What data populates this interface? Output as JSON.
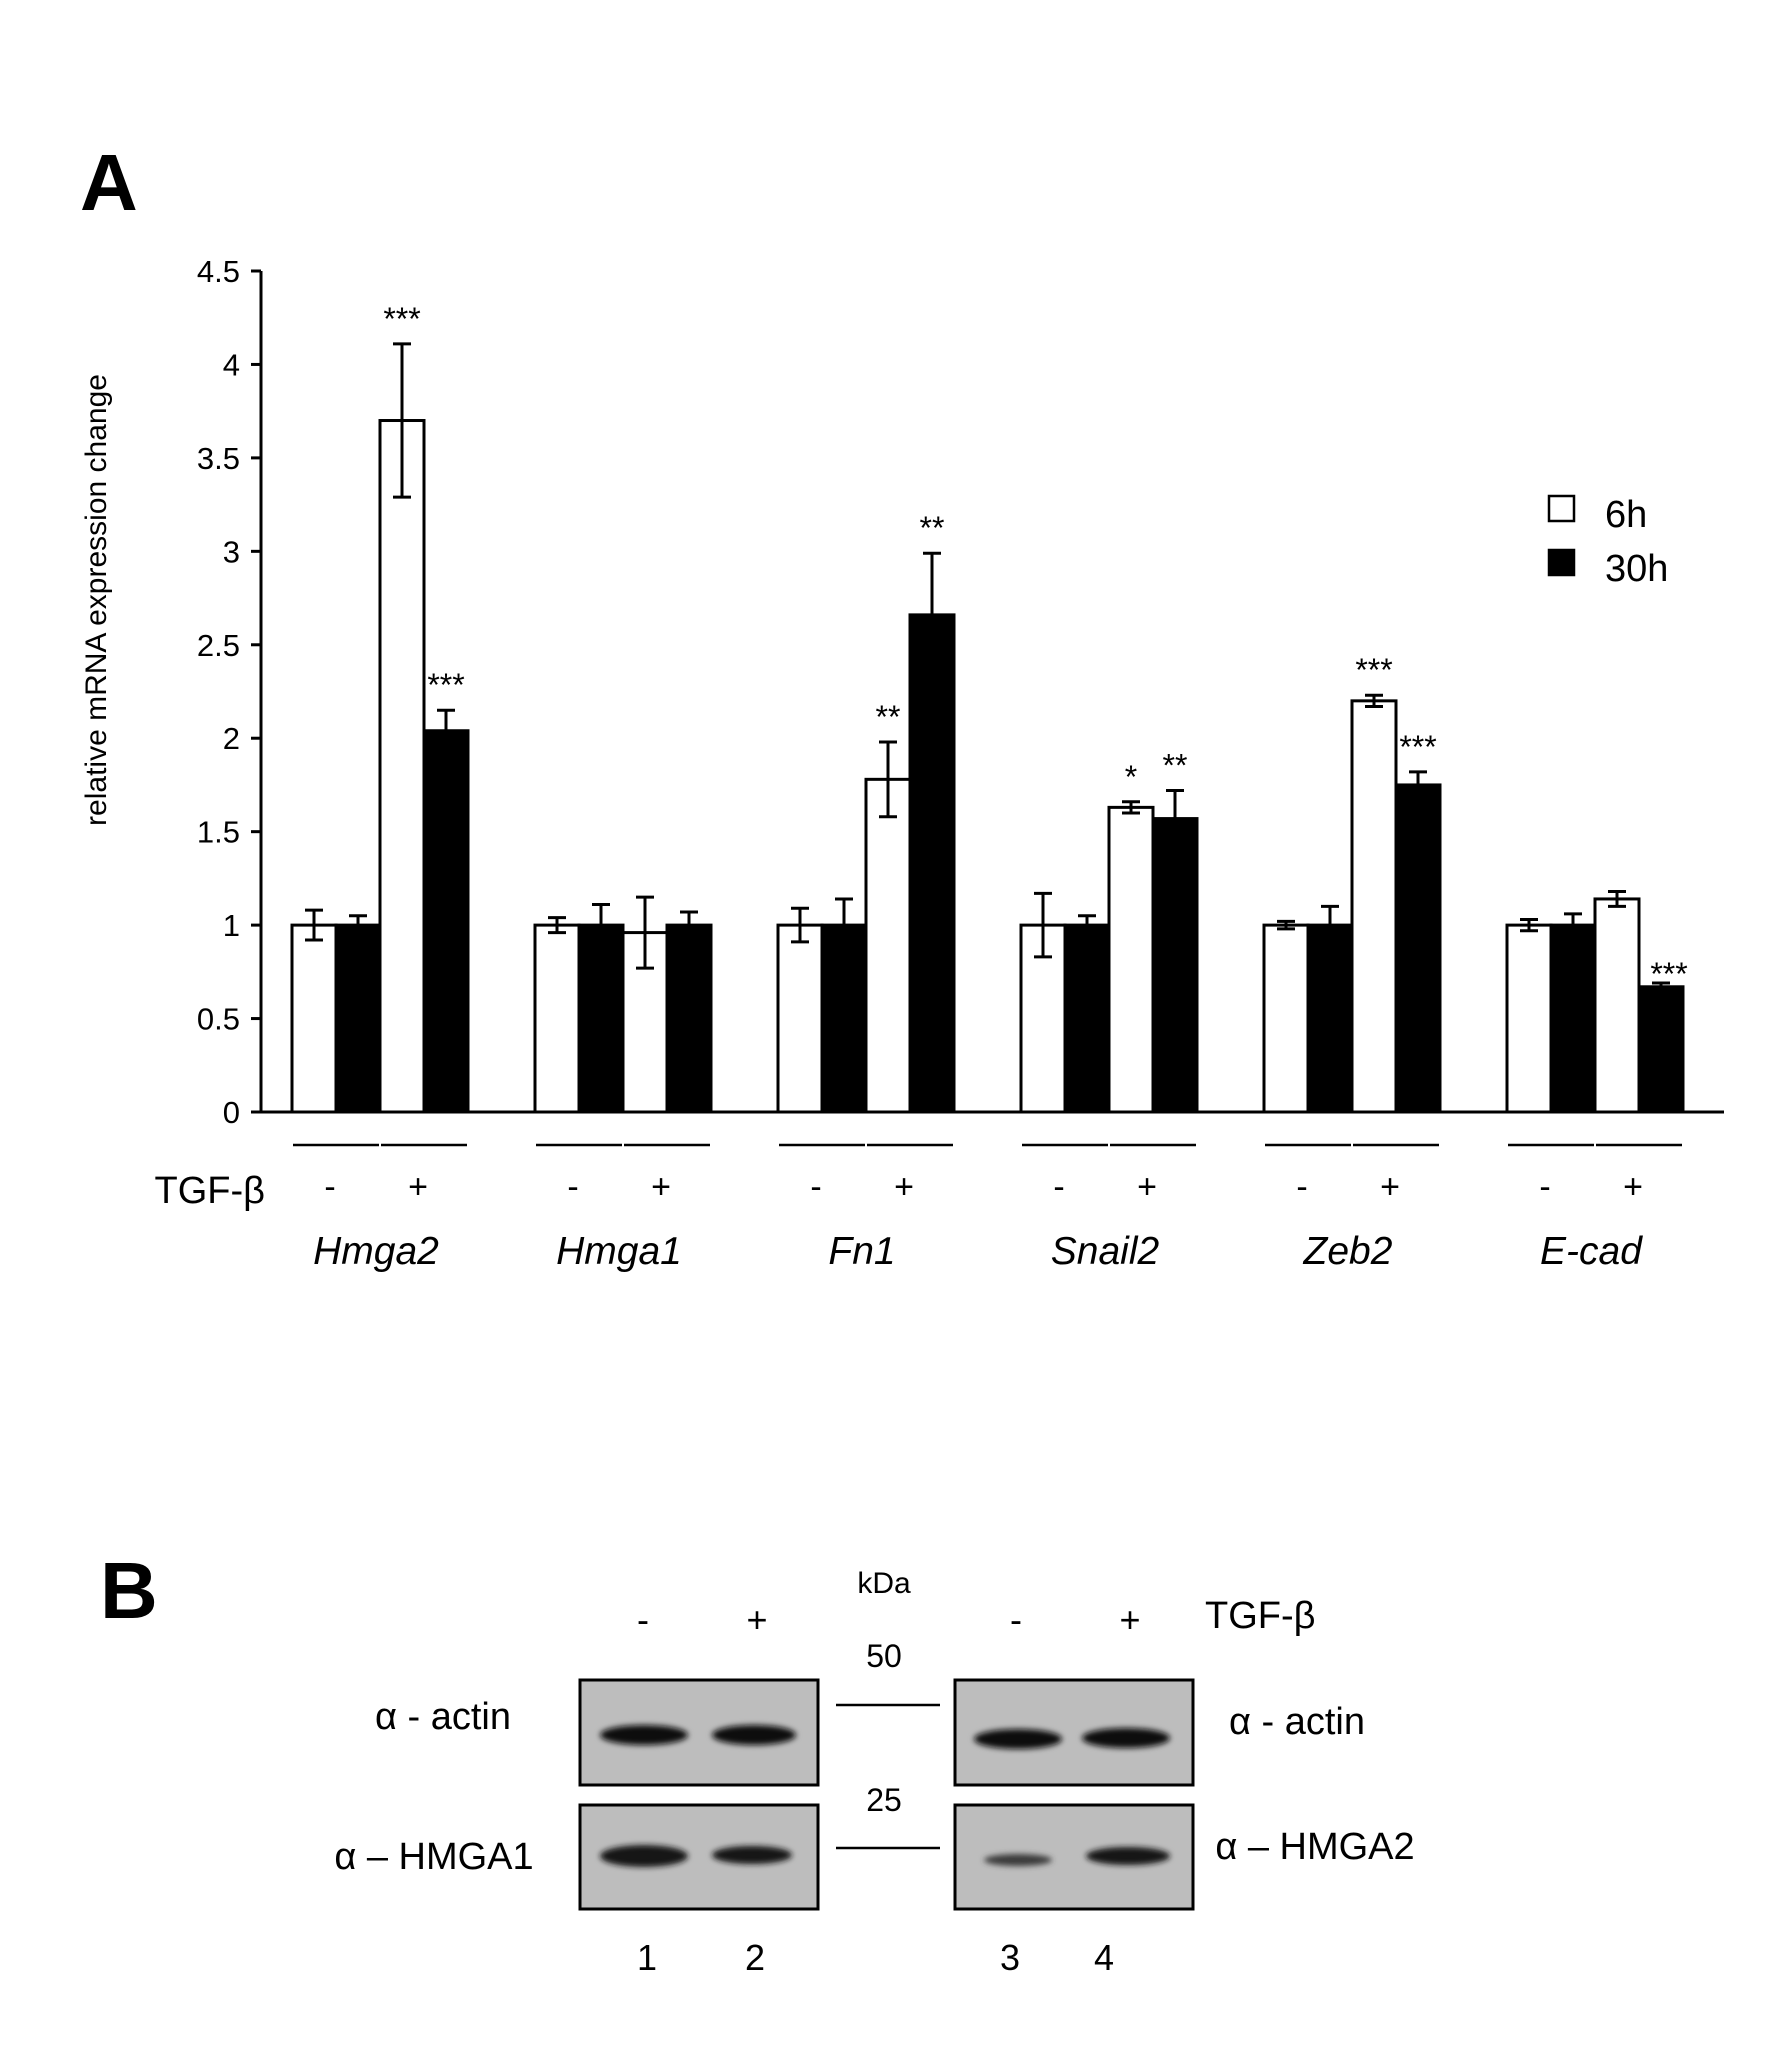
{
  "panel_a_label": "A",
  "panel_b_label": "B",
  "chart_data": {
    "type": "bar",
    "ylabel": "relative mRNA expression change",
    "xlabel": "",
    "ylim": [
      0,
      4.5
    ],
    "yticks": [
      "0",
      "0.5",
      "1",
      "1.5",
      "2",
      "2.5",
      "3",
      "3.5",
      "4",
      "4.5"
    ],
    "treatment_label": "TGF-β",
    "treatment_minus": "-",
    "treatment_plus": "+",
    "legend": {
      "placement": "top-right",
      "entries": [
        {
          "name": "6h",
          "color": "#ffffff"
        },
        {
          "name": "30h",
          "color": "#000000"
        }
      ]
    },
    "groups": [
      {
        "gene": "Hmga2",
        "bars": [
          {
            "series": "6h",
            "tgf": "-",
            "value": 1.0,
            "err": 0.08,
            "sig": ""
          },
          {
            "series": "30h",
            "tgf": "-",
            "value": 1.0,
            "err": 0.05,
            "sig": ""
          },
          {
            "series": "6h",
            "tgf": "+",
            "value": 3.7,
            "err": 0.41,
            "sig": "***"
          },
          {
            "series": "30h",
            "tgf": "+",
            "value": 2.04,
            "err": 0.11,
            "sig": "***"
          }
        ]
      },
      {
        "gene": "Hmga1",
        "bars": [
          {
            "series": "6h",
            "tgf": "-",
            "value": 1.0,
            "err": 0.04,
            "sig": ""
          },
          {
            "series": "30h",
            "tgf": "-",
            "value": 1.0,
            "err": 0.11,
            "sig": ""
          },
          {
            "series": "6h",
            "tgf": "+",
            "value": 0.96,
            "err": 0.19,
            "sig": ""
          },
          {
            "series": "30h",
            "tgf": "+",
            "value": 1.0,
            "err": 0.07,
            "sig": ""
          }
        ]
      },
      {
        "gene": "Fn1",
        "bars": [
          {
            "series": "6h",
            "tgf": "-",
            "value": 1.0,
            "err": 0.09,
            "sig": ""
          },
          {
            "series": "30h",
            "tgf": "-",
            "value": 1.0,
            "err": 0.14,
            "sig": ""
          },
          {
            "series": "6h",
            "tgf": "+",
            "value": 1.78,
            "err": 0.2,
            "sig": "**"
          },
          {
            "series": "30h",
            "tgf": "+",
            "value": 2.66,
            "err": 0.33,
            "sig": "**"
          }
        ]
      },
      {
        "gene": "Snail2",
        "bars": [
          {
            "series": "6h",
            "tgf": "-",
            "value": 1.0,
            "err": 0.17,
            "sig": ""
          },
          {
            "series": "30h",
            "tgf": "-",
            "value": 1.0,
            "err": 0.05,
            "sig": ""
          },
          {
            "series": "6h",
            "tgf": "+",
            "value": 1.63,
            "err": 0.03,
            "sig": "*"
          },
          {
            "series": "30h",
            "tgf": "+",
            "value": 1.57,
            "err": 0.15,
            "sig": "**"
          }
        ]
      },
      {
        "gene": "Zeb2",
        "bars": [
          {
            "series": "6h",
            "tgf": "-",
            "value": 1.0,
            "err": 0.02,
            "sig": ""
          },
          {
            "series": "30h",
            "tgf": "-",
            "value": 1.0,
            "err": 0.1,
            "sig": ""
          },
          {
            "series": "6h",
            "tgf": "+",
            "value": 2.2,
            "err": 0.03,
            "sig": "***"
          },
          {
            "series": "30h",
            "tgf": "+",
            "value": 1.75,
            "err": 0.07,
            "sig": "***"
          }
        ]
      },
      {
        "gene": "E-cad",
        "bars": [
          {
            "series": "6h",
            "tgf": "-",
            "value": 1.0,
            "err": 0.03,
            "sig": ""
          },
          {
            "series": "30h",
            "tgf": "-",
            "value": 1.0,
            "err": 0.06,
            "sig": ""
          },
          {
            "series": "6h",
            "tgf": "+",
            "value": 1.14,
            "err": 0.04,
            "sig": ""
          },
          {
            "series": "30h",
            "tgf": "+",
            "value": 0.67,
            "err": 0.02,
            "sig": "***"
          }
        ]
      }
    ]
  },
  "blot": {
    "kda_label": "kDa",
    "marker_50": "50",
    "marker_25": "25",
    "treatment_label": "TGF-β",
    "lane_signs": [
      "-",
      "+",
      "-",
      "+"
    ],
    "lane_numbers": [
      "1",
      "2",
      "3",
      "4"
    ],
    "left_labels": {
      "actin": "α - actin",
      "hmga": "α – HMGA1"
    },
    "right_labels": {
      "actin": "α - actin",
      "hmga": "α – HMGA2"
    }
  }
}
